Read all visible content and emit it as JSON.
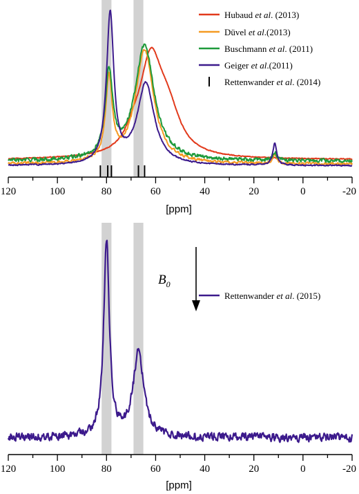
{
  "chart_data": [
    {
      "type": "line",
      "xlabel": "[ppm]",
      "xlim": [
        120,
        -20
      ],
      "x_ticks": [
        "120",
        "100",
        "80",
        "60",
        "40",
        "20",
        "0",
        "-20"
      ],
      "highlight_bands": [
        [
          78,
          82
        ],
        [
          65,
          69
        ]
      ],
      "series": [
        {
          "name": "Hubaud et al. (2013)",
          "name_parts": [
            "Hubaud ",
            "et al",
            ". (2013)"
          ],
          "color": "#e23a1c",
          "baseline": 0.06,
          "noise": 0.004,
          "peaks": [
            {
              "center": 62,
              "height": 0.6,
              "width": 5.5
            },
            {
              "center": 55,
              "height": 0.25,
              "width": 6
            },
            {
              "center": 69,
              "height": 0.08,
              "width": 4
            }
          ]
        },
        {
          "name": "Düvel et al.(2013)",
          "name_parts": [
            "Düvel ",
            "et al",
            ".(2013)"
          ],
          "color": "#f59a22",
          "baseline": 0.03,
          "noise": 0.012,
          "peaks": [
            {
              "center": 79,
              "height": 0.53,
              "width": 1.6
            },
            {
              "center": 64.5,
              "height": 0.74,
              "width": 4.5
            },
            {
              "center": 11.5,
              "height": 0.06,
              "width": 1.0
            }
          ]
        },
        {
          "name": "Buschmann et al. (2011)",
          "name_parts": [
            "Buschmann ",
            "et al",
            ". (2011)"
          ],
          "color": "#1d9a3a",
          "baseline": 0.05,
          "noise": 0.017,
          "peaks": [
            {
              "center": 79,
              "height": 0.55,
              "width": 1.8
            },
            {
              "center": 64.5,
              "height": 0.75,
              "width": 4.8
            },
            {
              "center": 11.5,
              "height": 0.05,
              "width": 1.0
            }
          ]
        },
        {
          "name": "Geiger et al.(2011)",
          "name_parts": [
            "Geiger ",
            "et al",
            ".(2011)"
          ],
          "color": "#3c1a8c",
          "baseline": 0.02,
          "noise": 0.006,
          "peaks": [
            {
              "center": 78.5,
              "height": 0.97,
              "width": 1.8
            },
            {
              "center": 64,
              "height": 0.53,
              "width": 4.2
            },
            {
              "center": 11.5,
              "height": 0.14,
              "width": 1.0
            }
          ]
        }
      ],
      "stick_marks": {
        "name": "Rettenwander et al. (2014)",
        "name_parts": [
          "Rettenwander ",
          "et al",
          ". (2014)"
        ],
        "positions": [
          82.5,
          79.5,
          78,
          67,
          64.5
        ]
      },
      "legend_position": "top-right"
    },
    {
      "type": "line",
      "xlabel": "[ppm]",
      "xlim": [
        120,
        -20
      ],
      "x_ticks": [
        "120",
        "100",
        "80",
        "60",
        "40",
        "20",
        "0",
        "-20"
      ],
      "highlight_bands": [
        [
          78,
          82
        ],
        [
          65,
          69
        ]
      ],
      "field_label": "B",
      "field_label_sub": "0",
      "series": [
        {
          "name": "Rettenwander et al. (2015)",
          "name_parts": [
            "Rettenwander ",
            "et al",
            ". (2015)"
          ],
          "color": "#3c1a8c",
          "baseline": 0.02,
          "noise": 0.03,
          "peaks": [
            {
              "center": 80,
              "height": 1.0,
              "width": 1.4
            },
            {
              "center": 67,
              "height": 0.43,
              "width": 2.6
            }
          ]
        }
      ],
      "legend_position": "top-right"
    }
  ]
}
